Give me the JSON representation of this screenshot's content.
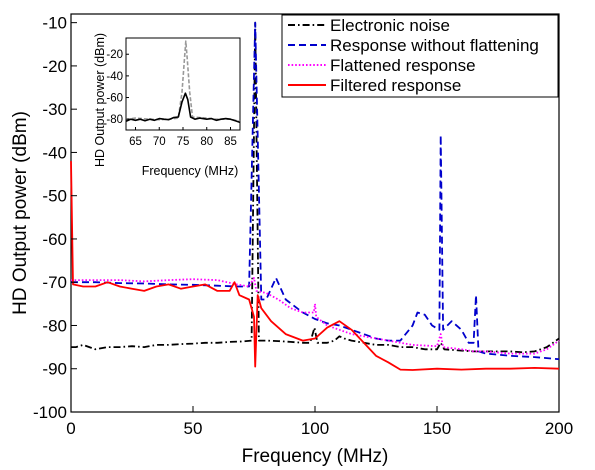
{
  "chart_data": [
    {
      "type": "line",
      "xlabel": "Frequency (MHz)",
      "ylabel": "HD Output power (dBm)",
      "xlim": [
        0,
        200
      ],
      "ylim": [
        -100,
        -8
      ],
      "xticks": [
        0,
        50,
        100,
        150,
        200
      ],
      "yticks": [
        -100,
        -90,
        -80,
        -70,
        -60,
        -50,
        -40,
        -30,
        -20,
        -10
      ],
      "grid": false,
      "legend_position": "top-right",
      "series": [
        {
          "name": "Electronic noise",
          "color": "#000000",
          "style": "dashdot",
          "points": [
            [
              0,
              -85
            ],
            [
              2,
              -85
            ],
            [
              5,
              -84.5
            ],
            [
              10,
              -85.5
            ],
            [
              15,
              -85
            ],
            [
              20,
              -85
            ],
            [
              25,
              -84.8
            ],
            [
              30,
              -85
            ],
            [
              35,
              -84.5
            ],
            [
              40,
              -84.5
            ],
            [
              45,
              -84.3
            ],
            [
              50,
              -84.2
            ],
            [
              55,
              -84
            ],
            [
              60,
              -84
            ],
            [
              65,
              -83.8
            ],
            [
              70,
              -83.7
            ],
            [
              74,
              -83.5
            ],
            [
              75.5,
              -10
            ],
            [
              77,
              -83.5
            ],
            [
              80,
              -83.5
            ],
            [
              85,
              -83.6
            ],
            [
              90,
              -83.8
            ],
            [
              95,
              -84
            ],
            [
              98,
              -84
            ],
            [
              99.8,
              -80.5
            ],
            [
              101,
              -84
            ],
            [
              105,
              -84
            ],
            [
              108,
              -83.5
            ],
            [
              110,
              -82.5
            ],
            [
              112,
              -83
            ],
            [
              115,
              -83.5
            ],
            [
              120,
              -84
            ],
            [
              125,
              -84.5
            ],
            [
              130,
              -84.5
            ],
            [
              135,
              -85
            ],
            [
              140,
              -85
            ],
            [
              145,
              -85.5
            ],
            [
              150,
              -85.5
            ],
            [
              151.5,
              -84
            ],
            [
              153,
              -85.5
            ],
            [
              160,
              -85.8
            ],
            [
              165,
              -86
            ],
            [
              170,
              -86
            ],
            [
              175,
              -86
            ],
            [
              180,
              -86
            ],
            [
              185,
              -86.2
            ],
            [
              190,
              -86
            ],
            [
              195,
              -85
            ],
            [
              200,
              -83
            ]
          ]
        },
        {
          "name": "Response without flattening",
          "color": "#0000cc",
          "style": "dashed",
          "points": [
            [
              0,
              -70
            ],
            [
              5,
              -70
            ],
            [
              10,
              -70
            ],
            [
              20,
              -70.2
            ],
            [
              30,
              -70.3
            ],
            [
              40,
              -70.5
            ],
            [
              50,
              -70.6
            ],
            [
              60,
              -70.8
            ],
            [
              68,
              -71
            ],
            [
              73,
              -71
            ],
            [
              75.5,
              -10
            ],
            [
              78,
              -74
            ],
            [
              80,
              -74
            ],
            [
              84,
              -69
            ],
            [
              88,
              -74
            ],
            [
              95,
              -77
            ],
            [
              100,
              -78.5
            ],
            [
              105,
              -79.5
            ],
            [
              110,
              -80
            ],
            [
              115,
              -81
            ],
            [
              120,
              -82
            ],
            [
              125,
              -83
            ],
            [
              130,
              -83.5
            ],
            [
              135,
              -83.5
            ],
            [
              140,
              -80
            ],
            [
              142,
              -77
            ],
            [
              145,
              -77.5
            ],
            [
              148,
              -80
            ],
            [
              151,
              -81
            ],
            [
              151.5,
              -36
            ],
            [
              152.5,
              -81
            ],
            [
              156,
              -79
            ],
            [
              160,
              -81
            ],
            [
              163,
              -84
            ],
            [
              165,
              -84
            ],
            [
              166,
              -73
            ],
            [
              167,
              -86
            ],
            [
              170,
              -86.5
            ],
            [
              180,
              -87
            ],
            [
              190,
              -87.3
            ],
            [
              200,
              -87.8
            ]
          ]
        },
        {
          "name": "Flattened response",
          "color": "#ff00ff",
          "style": "dotted",
          "points": [
            [
              0,
              -69.5
            ],
            [
              10,
              -69.5
            ],
            [
              20,
              -69.5
            ],
            [
              30,
              -69.8
            ],
            [
              40,
              -69.5
            ],
            [
              50,
              -69.3
            ],
            [
              60,
              -69.5
            ],
            [
              68,
              -70.5
            ],
            [
              73,
              -71
            ],
            [
              75,
              -69
            ],
            [
              76,
              -72
            ],
            [
              80,
              -72.5
            ],
            [
              85,
              -74
            ],
            [
              90,
              -76
            ],
            [
              95,
              -77
            ],
            [
              99.5,
              -77
            ],
            [
              100,
              -75
            ],
            [
              100.5,
              -78
            ],
            [
              105,
              -80
            ],
            [
              110,
              -81
            ],
            [
              115,
              -82
            ],
            [
              120,
              -82.5
            ],
            [
              125,
              -83
            ],
            [
              130,
              -83.5
            ],
            [
              140,
              -84.5
            ],
            [
              150,
              -84.8
            ],
            [
              151.5,
              -82
            ],
            [
              152.5,
              -85
            ],
            [
              160,
              -85.5
            ],
            [
              165,
              -86
            ],
            [
              170,
              -86
            ],
            [
              180,
              -86.5
            ],
            [
              190,
              -86.5
            ],
            [
              195,
              -85.5
            ],
            [
              200,
              -83.5
            ]
          ]
        },
        {
          "name": "Filtered response",
          "color": "#ff0000",
          "style": "solid",
          "points": [
            [
              0,
              -42
            ],
            [
              0.8,
              -70.5
            ],
            [
              5,
              -71
            ],
            [
              10,
              -71
            ],
            [
              15,
              -70
            ],
            [
              20,
              -71
            ],
            [
              25,
              -71.5
            ],
            [
              30,
              -72
            ],
            [
              35,
              -71
            ],
            [
              40,
              -70.5
            ],
            [
              45,
              -71.5
            ],
            [
              50,
              -71
            ],
            [
              55,
              -70.5
            ],
            [
              60,
              -72
            ],
            [
              65,
              -72
            ],
            [
              67,
              -70
            ],
            [
              69,
              -73
            ],
            [
              73,
              -74
            ],
            [
              75,
              -78
            ],
            [
              75.5,
              -89.5
            ],
            [
              76.5,
              -73
            ],
            [
              78,
              -76
            ],
            [
              82,
              -79
            ],
            [
              88,
              -82
            ],
            [
              95,
              -83.5
            ],
            [
              100,
              -83
            ],
            [
              105,
              -80.5
            ],
            [
              110,
              -79
            ],
            [
              115,
              -81
            ],
            [
              120,
              -84
            ],
            [
              125,
              -87
            ],
            [
              130,
              -88.5
            ],
            [
              135,
              -90.2
            ],
            [
              140,
              -90.3
            ],
            [
              150,
              -90
            ],
            [
              160,
              -90.2
            ],
            [
              170,
              -90
            ],
            [
              180,
              -90
            ],
            [
              190,
              -89.8
            ],
            [
              200,
              -90
            ]
          ]
        }
      ]
    },
    {
      "type": "line",
      "xlabel": "Frequency (MHz)",
      "ylabel": "HD Output power (dBm)",
      "xlim": [
        63,
        87
      ],
      "ylim": [
        -90,
        -5
      ],
      "xticks": [
        65,
        70,
        75,
        80,
        85
      ],
      "yticks": [
        -80,
        -60,
        -40,
        -20
      ],
      "series": [
        {
          "color": "#999999",
          "style": "dashed",
          "points": [
            [
              63,
              -80
            ],
            [
              65,
              -79
            ],
            [
              68,
              -80
            ],
            [
              70,
              -80.5
            ],
            [
              72,
              -80
            ],
            [
              74,
              -79
            ],
            [
              74.8,
              -55
            ],
            [
              75.3,
              -25
            ],
            [
              75.6,
              -8
            ],
            [
              75.9,
              -25
            ],
            [
              76.4,
              -55
            ],
            [
              77,
              -78
            ],
            [
              80,
              -79
            ],
            [
              82,
              -80
            ],
            [
              85,
              -80
            ],
            [
              87,
              -82
            ]
          ]
        },
        {
          "color": "#000000",
          "style": "solid",
          "points": [
            [
              63,
              -82
            ],
            [
              64,
              -80
            ],
            [
              65,
              -81
            ],
            [
              66,
              -80
            ],
            [
              67,
              -81.5
            ],
            [
              68,
              -80
            ],
            [
              69,
              -81
            ],
            [
              70,
              -79.5
            ],
            [
              71,
              -80
            ],
            [
              72,
              -80.5
            ],
            [
              73,
              -78.5
            ],
            [
              74,
              -78
            ],
            [
              74.8,
              -64
            ],
            [
              75.5,
              -56
            ],
            [
              76,
              -62
            ],
            [
              76.6,
              -78
            ],
            [
              77.5,
              -80
            ],
            [
              78.5,
              -79
            ],
            [
              80,
              -80
            ],
            [
              81,
              -79.5
            ],
            [
              82,
              -81
            ],
            [
              83,
              -80
            ],
            [
              84,
              -79.5
            ],
            [
              85,
              -80
            ],
            [
              86,
              -81.5
            ],
            [
              87,
              -83
            ]
          ]
        }
      ]
    }
  ]
}
